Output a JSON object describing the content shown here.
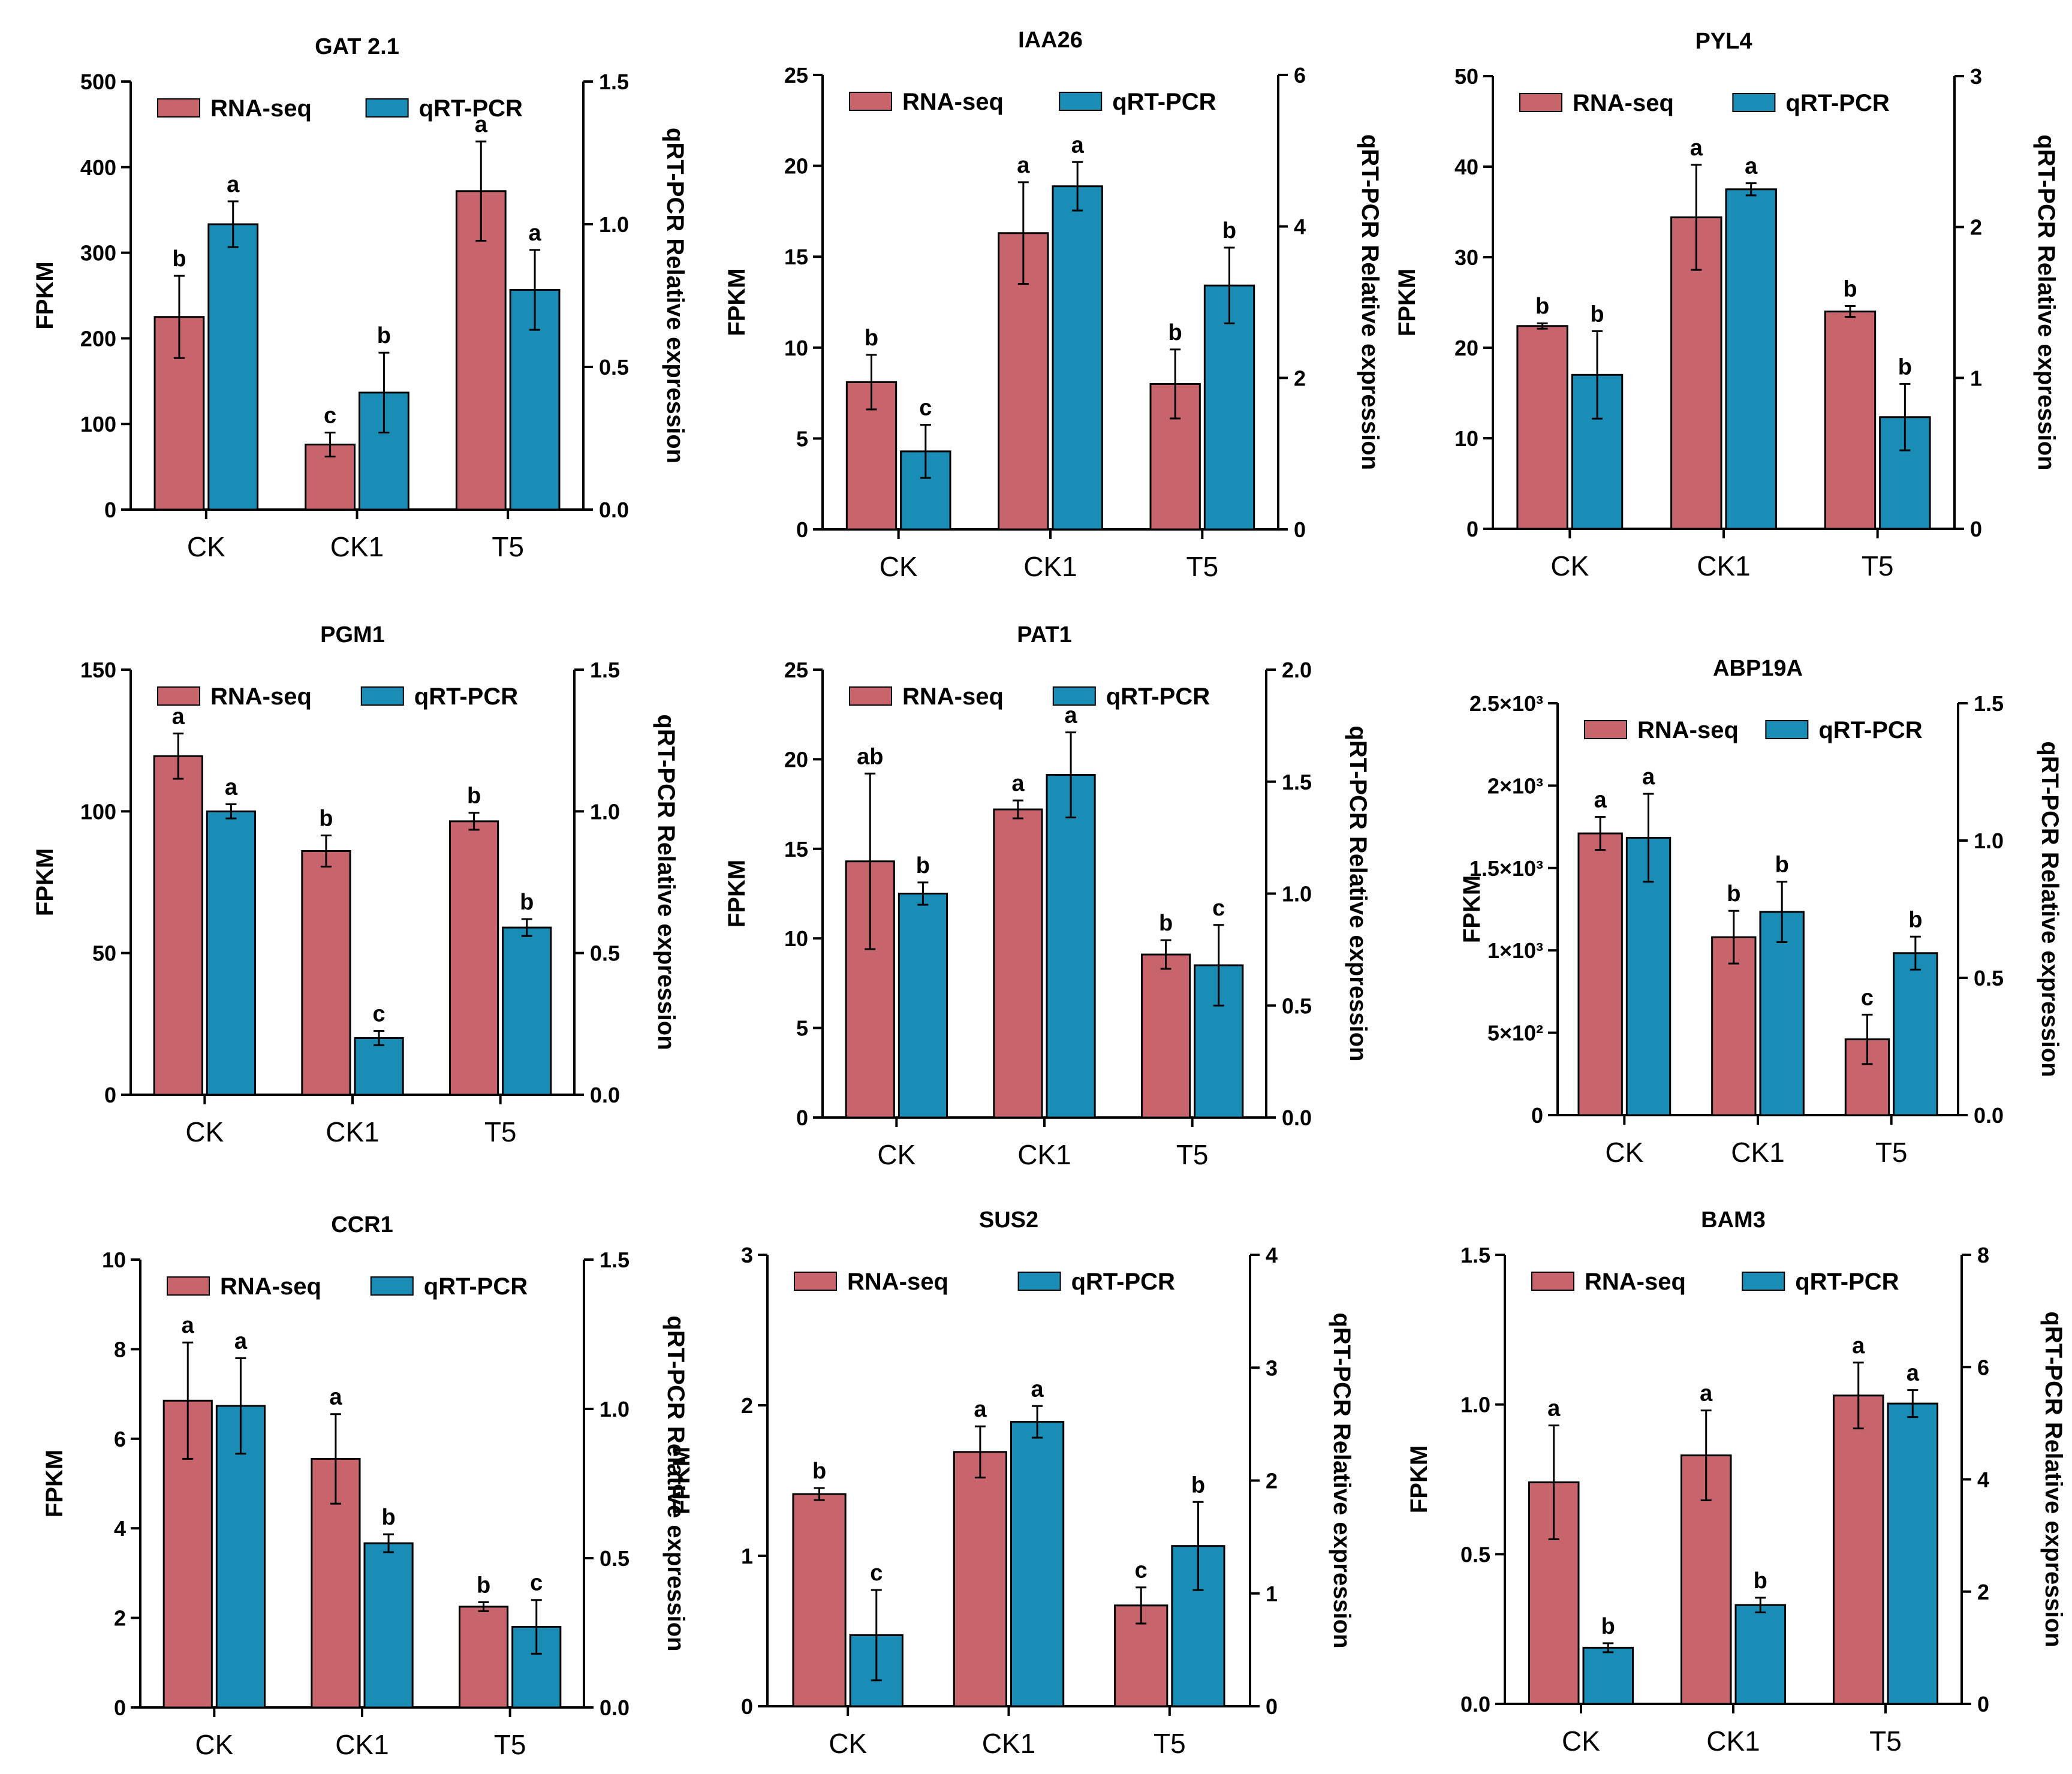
{
  "chart_data": [
    {
      "type": "bar",
      "title": "GAT 2.1",
      "categories": [
        "CK",
        "CK1",
        "T5"
      ],
      "ylabel": "FPKM",
      "y2label": "qRT-PCR Relative expression",
      "ylim": [
        0,
        500
      ],
      "yticks": [
        0,
        100,
        200,
        300,
        400,
        500
      ],
      "ytick_labels": [
        "0",
        "100",
        "200",
        "300",
        "400",
        "500"
      ],
      "y2lim": [
        0,
        1.5
      ],
      "y2ticks": [
        0,
        0.5,
        1,
        1.5
      ],
      "y2tick_labels": [
        "0.0",
        "0.5",
        "1.0",
        "1.5"
      ],
      "legend": [
        "RNA-seq",
        "qRT-PCR"
      ],
      "series": [
        {
          "name": "RNA-seq",
          "axis": "left",
          "color": "#C8646B",
          "values": [
            225,
            76,
            372
          ],
          "errors": [
            48,
            14,
            58
          ],
          "labels": [
            "b",
            "c",
            "a"
          ]
        },
        {
          "name": "qRT-PCR",
          "axis": "right",
          "color": "#1A8DB7",
          "values": [
            1.0,
            0.41,
            0.77
          ],
          "errors": [
            0.08,
            0.14,
            0.14
          ],
          "labels": [
            "a",
            "b",
            "a"
          ]
        }
      ]
    },
    {
      "type": "bar",
      "title": "IAA26",
      "categories": [
        "CK",
        "CK1",
        "T5"
      ],
      "ylabel": "FPKM",
      "y2label": "qRT-PCR Relative expression",
      "ylim": [
        0,
        25
      ],
      "yticks": [
        0,
        5,
        10,
        15,
        20,
        25
      ],
      "ytick_labels": [
        "0",
        "5",
        "10",
        "15",
        "20",
        "25"
      ],
      "y2lim": [
        0,
        6
      ],
      "y2ticks": [
        0,
        2,
        4,
        6
      ],
      "y2tick_labels": [
        "0",
        "2",
        "4",
        "6"
      ],
      "legend": [
        "RNA-seq",
        "qRT-PCR"
      ],
      "series": [
        {
          "name": "RNA-seq",
          "axis": "left",
          "color": "#C8646B",
          "values": [
            8.1,
            16.3,
            8.0
          ],
          "errors": [
            1.5,
            2.8,
            1.9
          ],
          "labels": [
            "b",
            "a",
            "b"
          ]
        },
        {
          "name": "qRT-PCR",
          "axis": "right",
          "color": "#1A8DB7",
          "values": [
            1.03,
            4.53,
            3.22
          ],
          "errors": [
            0.35,
            0.32,
            0.5
          ],
          "labels": [
            "c",
            "a",
            "b"
          ]
        }
      ]
    },
    {
      "type": "bar",
      "title": "PYL4",
      "categories": [
        "CK",
        "CK1",
        "T5"
      ],
      "ylabel": "FPKM",
      "y2label": "qRT-PCR Relative expression",
      "ylim": [
        0,
        50
      ],
      "yticks": [
        0,
        10,
        20,
        30,
        40,
        50
      ],
      "ytick_labels": [
        "0",
        "10",
        "20",
        "30",
        "40",
        "50"
      ],
      "y2lim": [
        0,
        3
      ],
      "y2ticks": [
        0,
        1,
        2,
        3
      ],
      "y2tick_labels": [
        "0",
        "1",
        "2",
        "3"
      ],
      "legend": [
        "RNA-seq",
        "qRT-PCR"
      ],
      "series": [
        {
          "name": "RNA-seq",
          "axis": "left",
          "color": "#C8646B",
          "values": [
            22.4,
            34.4,
            24.0
          ],
          "errors": [
            0.3,
            5.8,
            0.6
          ],
          "labels": [
            "b",
            "a",
            "b"
          ]
        },
        {
          "name": "qRT-PCR",
          "axis": "right",
          "color": "#1A8DB7",
          "values": [
            1.02,
            2.25,
            0.74
          ],
          "errors": [
            0.29,
            0.04,
            0.22
          ],
          "labels": [
            "b",
            "a",
            "b"
          ]
        }
      ]
    },
    {
      "type": "bar",
      "title": "PGM1",
      "categories": [
        "CK",
        "CK1",
        "T5"
      ],
      "ylabel": "FPKM",
      "y2label": "qRT-PCR Relative expression",
      "ylim": [
        0,
        150
      ],
      "yticks": [
        0,
        50,
        100,
        150
      ],
      "ytick_labels": [
        "0",
        "50",
        "100",
        "150"
      ],
      "y2lim": [
        0,
        1.5
      ],
      "y2ticks": [
        0,
        0.5,
        1,
        1.5
      ],
      "y2tick_labels": [
        "0.0",
        "0.5",
        "1.0",
        "1.5"
      ],
      "legend": [
        "RNA-seq",
        "qRT-PCR"
      ],
      "series": [
        {
          "name": "RNA-seq",
          "axis": "left",
          "color": "#C8646B",
          "values": [
            119.5,
            86,
            96.5
          ],
          "errors": [
            8,
            5.5,
            3
          ],
          "labels": [
            "a",
            "b",
            "b"
          ]
        },
        {
          "name": "qRT-PCR",
          "axis": "right",
          "color": "#1A8DB7",
          "values": [
            1.0,
            0.2,
            0.59
          ],
          "errors": [
            0.025,
            0.025,
            0.03
          ],
          "labels": [
            "a",
            "c",
            "b"
          ]
        }
      ]
    },
    {
      "type": "bar",
      "title": "PAT1",
      "categories": [
        "CK",
        "CK1",
        "T5"
      ],
      "ylabel": "FPKM",
      "y2label": "qRT-PCR Relative expression",
      "ylim": [
        0,
        25
      ],
      "yticks": [
        0,
        5,
        10,
        15,
        20,
        25
      ],
      "ytick_labels": [
        "0",
        "5",
        "10",
        "15",
        "20",
        "25"
      ],
      "y2lim": [
        0,
        2
      ],
      "y2ticks": [
        0,
        0.5,
        1,
        1.5,
        2
      ],
      "y2tick_labels": [
        "0.0",
        "0.5",
        "1.0",
        "1.5",
        "2.0"
      ],
      "legend": [
        "RNA-seq",
        "qRT-PCR"
      ],
      "series": [
        {
          "name": "RNA-seq",
          "axis": "left",
          "color": "#C8646B",
          "values": [
            14.3,
            17.2,
            9.1
          ],
          "errors": [
            4.9,
            0.5,
            0.8
          ],
          "labels": [
            "ab",
            "a",
            "b"
          ]
        },
        {
          "name": "qRT-PCR",
          "axis": "right",
          "color": "#1A8DB7",
          "values": [
            1.0,
            1.53,
            0.68
          ],
          "errors": [
            0.05,
            0.19,
            0.18
          ],
          "labels": [
            "b",
            "a",
            "c"
          ]
        }
      ]
    },
    {
      "type": "bar",
      "title": "ABP19A",
      "categories": [
        "CK",
        "CK1",
        "T5"
      ],
      "ylabel": "FPKM",
      "y2label": "qRT-PCR Relative expression",
      "ylim": [
        0,
        2500
      ],
      "yticks": [
        0,
        500,
        1000,
        1500,
        2000,
        2500
      ],
      "ytick_labels": [
        "0",
        "5×10²",
        "1×10³",
        "1.5×10³",
        "2×10³",
        "2.5×10³"
      ],
      "y2lim": [
        0,
        1.5
      ],
      "y2ticks": [
        0,
        0.5,
        1,
        1.5
      ],
      "y2tick_labels": [
        "0.0",
        "0.5",
        "1.0",
        "1.5"
      ],
      "legend": [
        "RNA-seq",
        "qRT-PCR"
      ],
      "series": [
        {
          "name": "RNA-seq",
          "axis": "left",
          "color": "#C8646B",
          "values": [
            1710,
            1080,
            460
          ],
          "errors": [
            100,
            160,
            150
          ],
          "labels": [
            "a",
            "b",
            "c"
          ]
        },
        {
          "name": "qRT-PCR",
          "axis": "right",
          "color": "#1A8DB7",
          "values": [
            1.01,
            0.74,
            0.59
          ],
          "errors": [
            0.16,
            0.11,
            0.06
          ],
          "labels": [
            "a",
            "b",
            "b"
          ]
        }
      ]
    },
    {
      "type": "bar",
      "title": "CCR1",
      "categories": [
        "CK",
        "CK1",
        "T5"
      ],
      "ylabel": "FPKM",
      "y2label": "qRT-PCR Relative expression",
      "ylim": [
        0,
        10
      ],
      "yticks": [
        0,
        2,
        4,
        6,
        8,
        10
      ],
      "ytick_labels": [
        "0",
        "2",
        "4",
        "6",
        "8",
        "10"
      ],
      "y2lim": [
        0,
        1.5
      ],
      "y2ticks": [
        0,
        0.5,
        1,
        1.5
      ],
      "y2tick_labels": [
        "0.0",
        "0.5",
        "1.0",
        "1.5"
      ],
      "legend": [
        "RNA-seq",
        "qRT-PCR"
      ],
      "series": [
        {
          "name": "RNA-seq",
          "axis": "left",
          "color": "#C8646B",
          "values": [
            6.85,
            5.55,
            2.25
          ],
          "errors": [
            1.3,
            1.0,
            0.1
          ],
          "labels": [
            "a",
            "a",
            "b"
          ]
        },
        {
          "name": "qRT-PCR",
          "axis": "right",
          "color": "#1A8DB7",
          "values": [
            1.01,
            0.55,
            0.27
          ],
          "errors": [
            0.16,
            0.03,
            0.09
          ],
          "labels": [
            "a",
            "b",
            "c"
          ]
        }
      ]
    },
    {
      "type": "bar",
      "title": "SUS2",
      "categories": [
        "CK",
        "CK1",
        "T5"
      ],
      "ylabel": "FPKM",
      "y2label": "qRT-PCR Relative expression",
      "ylim": [
        0,
        3
      ],
      "yticks": [
        0,
        1,
        2,
        3
      ],
      "ytick_labels": [
        "0",
        "1",
        "2",
        "3"
      ],
      "y2lim": [
        0,
        4
      ],
      "y2ticks": [
        0,
        1,
        2,
        3,
        4
      ],
      "y2tick_labels": [
        "0",
        "1",
        "2",
        "3",
        "4"
      ],
      "legend": [
        "RNA-seq",
        "qRT-PCR"
      ],
      "series": [
        {
          "name": "RNA-seq",
          "axis": "left",
          "color": "#C8646B",
          "values": [
            1.41,
            1.69,
            0.67
          ],
          "errors": [
            0.04,
            0.17,
            0.12
          ],
          "labels": [
            "b",
            "a",
            "c"
          ]
        },
        {
          "name": "qRT-PCR",
          "axis": "right",
          "color": "#1A8DB7",
          "values": [
            0.63,
            2.52,
            1.42
          ],
          "errors": [
            0.4,
            0.14,
            0.39
          ],
          "labels": [
            "c",
            "a",
            "b"
          ]
        }
      ]
    },
    {
      "type": "bar",
      "title": "BAM3",
      "categories": [
        "CK",
        "CK1",
        "T5"
      ],
      "ylabel": "FPKM",
      "y2label": "qRT-PCR Relative expression",
      "ylim": [
        0,
        1.5
      ],
      "yticks": [
        0,
        0.5,
        1,
        1.5
      ],
      "ytick_labels": [
        "0.0",
        "0.5",
        "1.0",
        "1.5"
      ],
      "y2lim": [
        0,
        8
      ],
      "y2ticks": [
        0,
        2,
        4,
        6,
        8
      ],
      "y2tick_labels": [
        "0",
        "2",
        "4",
        "6",
        "8"
      ],
      "legend": [
        "RNA-seq",
        "qRT-PCR"
      ],
      "series": [
        {
          "name": "RNA-seq",
          "axis": "left",
          "color": "#C8646B",
          "values": [
            0.74,
            0.83,
            1.03
          ],
          "errors": [
            0.19,
            0.15,
            0.11
          ],
          "labels": [
            "a",
            "a",
            "a"
          ]
        },
        {
          "name": "qRT-PCR",
          "axis": "right",
          "color": "#1A8DB7",
          "values": [
            1.0,
            1.76,
            5.35
          ],
          "errors": [
            0.08,
            0.13,
            0.24
          ],
          "labels": [
            "b",
            "b",
            "a"
          ]
        }
      ]
    }
  ]
}
